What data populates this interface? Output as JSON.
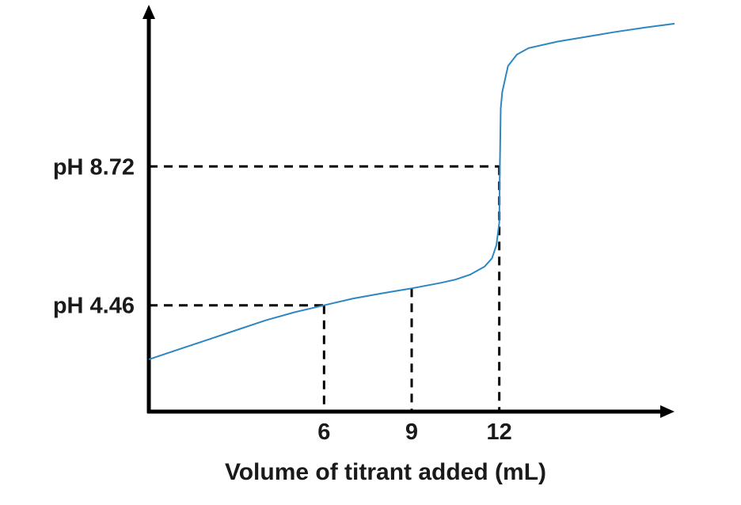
{
  "chart_data": {
    "type": "line",
    "title": "",
    "xlabel": "Volume of titrant added (mL)",
    "ylabel": "",
    "xlim": [
      0,
      18
    ],
    "ylim": [
      1.2,
      13
    ],
    "grid": false,
    "x_ticks": [
      {
        "value": 6,
        "label": "6"
      },
      {
        "value": 9,
        "label": "9"
      },
      {
        "value": 12,
        "label": "12"
      }
    ],
    "y_ticks": [
      {
        "value": 4.46,
        "label": "pH 4.46"
      },
      {
        "value": 8.72,
        "label": "pH 8.72"
      }
    ],
    "series": [
      {
        "color": "#2e86c1",
        "points": [
          [
            0,
            2.8
          ],
          [
            1,
            3.1
          ],
          [
            2,
            3.4
          ],
          [
            3,
            3.7
          ],
          [
            4,
            4.0
          ],
          [
            5,
            4.25
          ],
          [
            6,
            4.46
          ],
          [
            7,
            4.67
          ],
          [
            8,
            4.83
          ],
          [
            9,
            4.98
          ],
          [
            10,
            5.15
          ],
          [
            10.5,
            5.25
          ],
          [
            11,
            5.4
          ],
          [
            11.5,
            5.65
          ],
          [
            11.75,
            5.9
          ],
          [
            11.9,
            6.3
          ],
          [
            12.0,
            7.0
          ],
          [
            12.02,
            8.72
          ],
          [
            12.05,
            10.5
          ],
          [
            12.1,
            11.0
          ],
          [
            12.3,
            11.8
          ],
          [
            12.6,
            12.15
          ],
          [
            13,
            12.35
          ],
          [
            14,
            12.55
          ],
          [
            15,
            12.7
          ],
          [
            16,
            12.85
          ],
          [
            17,
            12.98
          ],
          [
            18,
            13.1
          ]
        ]
      }
    ],
    "reference_lines": [
      {
        "x": 6,
        "y": 4.46,
        "style": "dashed"
      },
      {
        "x": 9,
        "y": 4.98,
        "style": "dashed"
      },
      {
        "x": 12,
        "y": 8.72,
        "style": "dashed"
      }
    ]
  }
}
